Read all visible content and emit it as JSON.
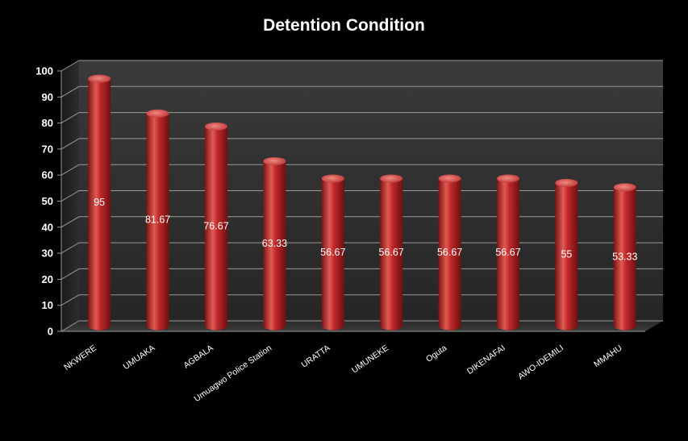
{
  "chart_data": {
    "type": "bar",
    "title": "Detention Condition",
    "xlabel": "",
    "ylabel": "",
    "categories": [
      "NKWERE",
      "UMUAKA",
      "AGBALA",
      "Umuagwo Police Station",
      "URATTA",
      "UMUNEKE",
      "Oguta",
      "DIKENAFAI",
      "AWO-IDEMILI",
      "MMAHU"
    ],
    "values": [
      95,
      81.67,
      76.67,
      63.33,
      56.67,
      56.67,
      56.67,
      56.67,
      55,
      53.33
    ],
    "data_labels": [
      "95",
      "81.67",
      "76.67",
      "63.33",
      "56.67",
      "56.67",
      "56.67",
      "56.67",
      "55",
      "53.33"
    ],
    "ylim": [
      0,
      100
    ],
    "yticks": [
      "0",
      "10",
      "20",
      "30",
      "40",
      "50",
      "60",
      "70",
      "80",
      "90",
      "100"
    ],
    "grid": true,
    "legend": "none",
    "style": "3d-cylinder",
    "colors": {
      "background": "#000000",
      "bar": "#c0282a",
      "bar_highlight": "#f07068",
      "bar_shadow": "#6e1010",
      "text": "#ffffff",
      "grid": "#9a9a9a"
    }
  }
}
